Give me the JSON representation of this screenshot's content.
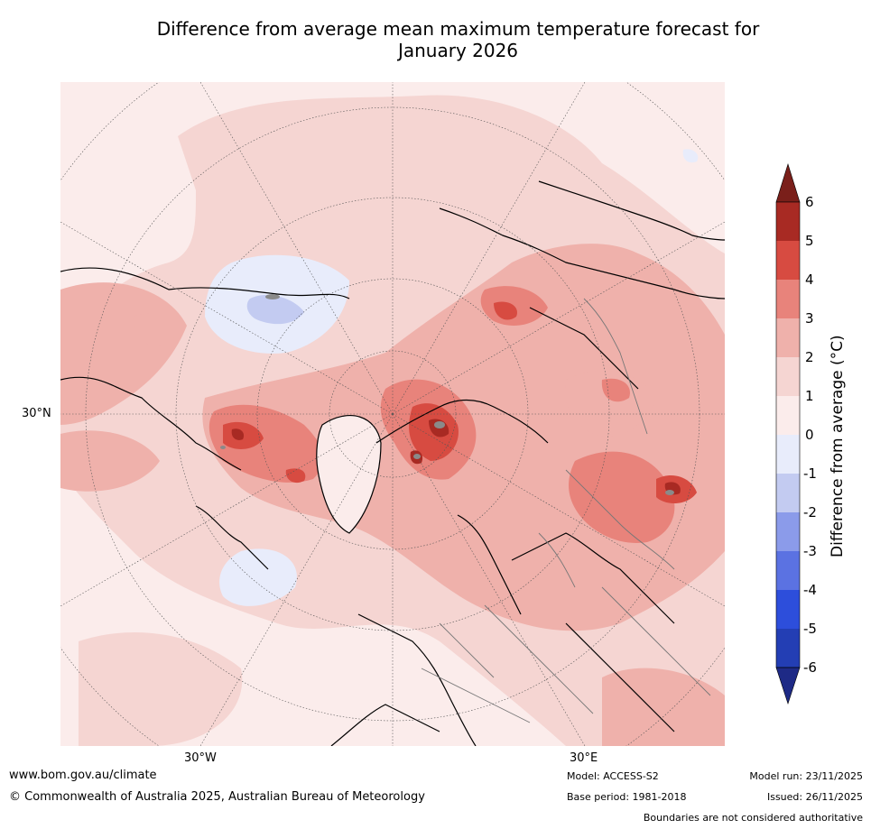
{
  "title": {
    "line1": "Difference from average mean maximum temperature forecast for",
    "line2": "January 2026"
  },
  "map": {
    "projection": "north-polar-stereographic",
    "lat_label": "30°N",
    "lon_labels": [
      "30°W",
      "30°E"
    ]
  },
  "legend": {
    "title": "Difference from average (°C)",
    "ticks": [
      "6",
      "5",
      "4",
      "3",
      "2",
      "1",
      "0",
      "-1",
      "-2",
      "-3",
      "-4",
      "-5",
      "-6"
    ],
    "colors": {
      "above_6": "#7a1f1a",
      "5_to_6": "#a82a23",
      "4_to_5": "#d74b41",
      "3_to_4": "#e8837b",
      "2_to_3": "#efb1ab",
      "1_to_2": "#f5d5d2",
      "0_to_1": "#fbeceb",
      "m1_to_0": "#e8ecfb",
      "m2_to_m1": "#c3cbf1",
      "m3_to_m2": "#8b9bea",
      "m4_to_m3": "#5b72e2",
      "m5_to_m4": "#2d4edb",
      "m6_to_m5": "#233eb4",
      "below_m6": "#1e2a86"
    }
  },
  "footer": {
    "website": "www.bom.gov.au/climate",
    "copyright": "© Commonwealth of Australia 2025, Australian Bureau of Meteorology",
    "model": "Model: ACCESS-S2",
    "base_period": "Base period: 1981-2018",
    "model_run": "Model run: 23/11/2025",
    "issued": "Issued: 26/11/2025",
    "disclaimer": "Boundaries are not considered authoritative"
  }
}
